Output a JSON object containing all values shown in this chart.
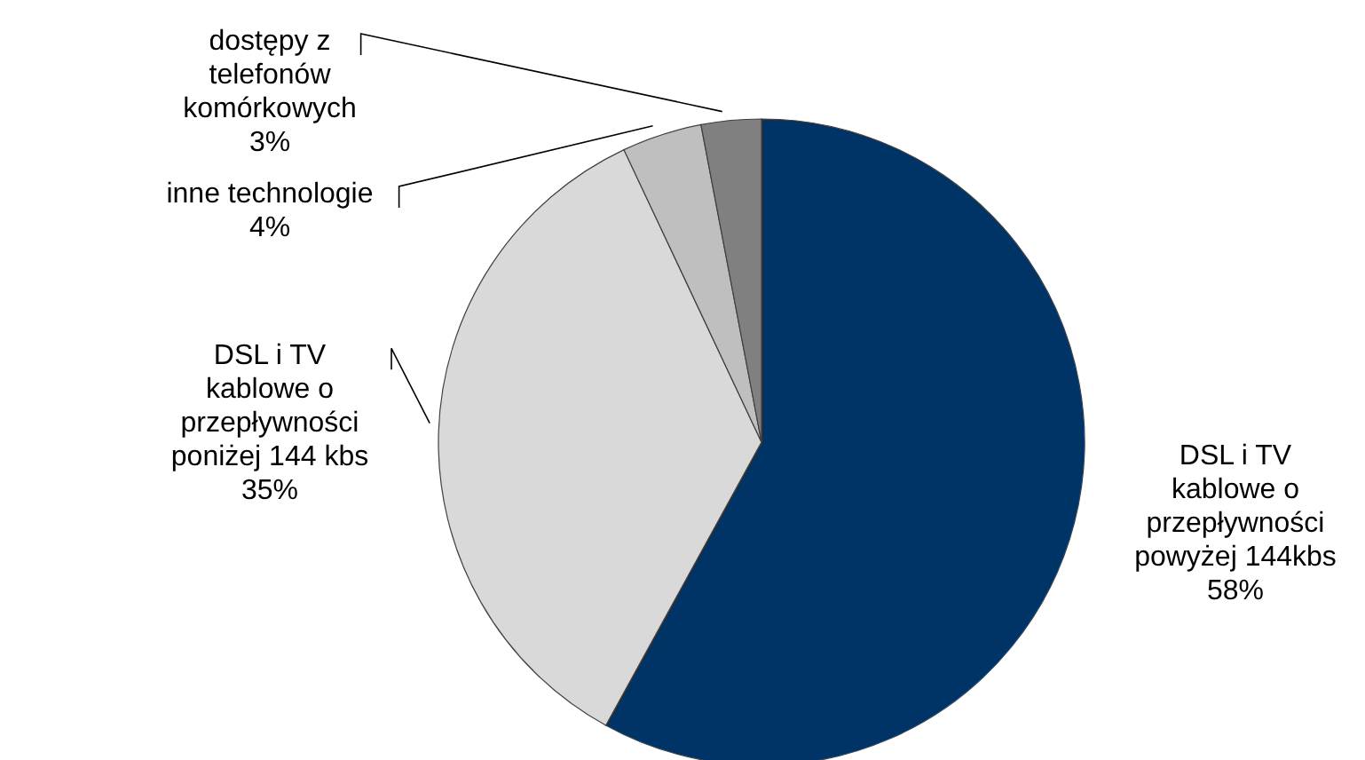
{
  "chart_data": {
    "type": "pie",
    "categories": [
      "DSL i TV kablowe o przepływności powyżej 144kbs",
      "DSL i TV kablowe o przepływności poniżej 144 kbs",
      "inne technologie",
      "dostępy z telefonów komórkowych"
    ],
    "values": [
      58,
      35,
      4,
      3
    ],
    "value_labels": [
      "58%",
      "35%",
      "4%",
      "3%"
    ],
    "colors": [
      "#003366",
      "#d9d9d9",
      "#bfbfbf",
      "#808080"
    ]
  }
}
